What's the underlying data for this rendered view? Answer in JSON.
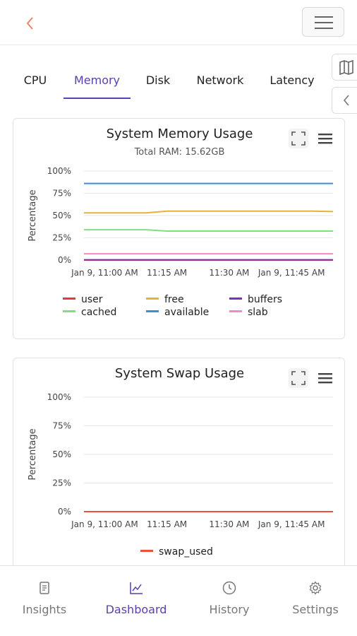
{
  "header": {
    "back_icon": "chevron-left-icon",
    "menu_icon": "hamburger-icon"
  },
  "side_buttons": [
    {
      "icon": "map-icon"
    },
    {
      "icon": "chevron-left-icon"
    }
  ],
  "tabs": [
    {
      "label": "CPU",
      "active": false
    },
    {
      "label": "Memory",
      "active": true
    },
    {
      "label": "Disk",
      "active": false
    },
    {
      "label": "Network",
      "active": false
    },
    {
      "label": "Latency",
      "active": false
    }
  ],
  "memory_card": {
    "title": "System Memory Usage",
    "subtitle": "Total RAM: 15.62GB",
    "ylabel": "Percentage",
    "y_ticks": [
      "100%",
      "75%",
      "50%",
      "25%",
      "0%"
    ],
    "x_ticks": [
      "Jan 9, 11:00 AM",
      "11:15 AM",
      "11:30 AM",
      "Jan 9, 11:45 AM"
    ],
    "legend": [
      "user",
      "free",
      "buffers",
      "cached",
      "available",
      "slab"
    ]
  },
  "swap_card": {
    "title": "System Swap Usage",
    "ylabel": "Percentage",
    "y_ticks": [
      "100%",
      "75%",
      "50%",
      "25%",
      "0%"
    ],
    "x_ticks": [
      "Jan 9, 11:00 AM",
      "11:15 AM",
      "11:30 AM",
      "Jan 9, 11:45 AM"
    ],
    "legend": [
      "swap_used"
    ]
  },
  "chart_data": [
    {
      "type": "line",
      "title": "System Memory Usage",
      "subtitle": "Total RAM: 15.62GB",
      "ylabel": "Percentage",
      "ylim": [
        0,
        100
      ],
      "x": [
        "10:55",
        "11:00",
        "11:05",
        "11:10",
        "11:15",
        "11:20",
        "11:25",
        "11:30",
        "11:35",
        "11:40",
        "11:45",
        "11:50",
        "11:55"
      ],
      "x_tick_labels": [
        "Jan 9, 11:00 AM",
        "11:15 AM",
        "11:30 AM",
        "Jan 9, 11:45 AM"
      ],
      "series": [
        {
          "name": "user",
          "color": "#e03a3a",
          "values": [
            0,
            0,
            0,
            0,
            0,
            0,
            0,
            0,
            0,
            0,
            0,
            0,
            0
          ]
        },
        {
          "name": "free",
          "color": "#e8b23a",
          "values": [
            53,
            53,
            53,
            53,
            55,
            55,
            55,
            55,
            55,
            55,
            55,
            55,
            54.5
          ]
        },
        {
          "name": "buffers",
          "color": "#7b32b5",
          "values": [
            0.3,
            0.3,
            0.3,
            0.3,
            0.3,
            0.3,
            0.3,
            0.3,
            0.3,
            0.3,
            0.3,
            0.3,
            0.3
          ]
        },
        {
          "name": "cached",
          "color": "#7fe07f",
          "values": [
            34,
            34,
            34,
            34,
            32.5,
            32.5,
            32.5,
            32.5,
            32.5,
            32.5,
            32.5,
            32.5,
            32.5
          ]
        },
        {
          "name": "available",
          "color": "#3a8fd6",
          "values": [
            86,
            86,
            86,
            86,
            86,
            86,
            86,
            86,
            86,
            86,
            86,
            86,
            86
          ]
        },
        {
          "name": "slab",
          "color": "#f28ac8",
          "values": [
            7,
            7,
            7,
            7,
            7,
            7,
            7,
            7,
            7,
            7,
            7,
            7,
            7
          ]
        }
      ],
      "grid": true,
      "legend_position": "bottom"
    },
    {
      "type": "line",
      "title": "System Swap Usage",
      "ylabel": "Percentage",
      "ylim": [
        0,
        100
      ],
      "x": [
        "10:55",
        "11:00",
        "11:05",
        "11:10",
        "11:15",
        "11:20",
        "11:25",
        "11:30",
        "11:35",
        "11:40",
        "11:45",
        "11:50",
        "11:55"
      ],
      "x_tick_labels": [
        "Jan 9, 11:00 AM",
        "11:15 AM",
        "11:30 AM",
        "Jan 9, 11:45 AM"
      ],
      "series": [
        {
          "name": "swap_used",
          "color": "#e8533a",
          "values": [
            0,
            0,
            0,
            0,
            0,
            0,
            0,
            0,
            0,
            0,
            0,
            0,
            0
          ]
        }
      ],
      "grid": true,
      "legend_position": "bottom"
    }
  ],
  "bottom_nav": [
    {
      "label": "Insights",
      "icon": "document-icon",
      "active": false
    },
    {
      "label": "Dashboard",
      "icon": "line-chart-icon",
      "active": true
    },
    {
      "label": "History",
      "icon": "clock-icon",
      "active": false
    },
    {
      "label": "Settings",
      "icon": "gear-icon",
      "active": false
    }
  ]
}
